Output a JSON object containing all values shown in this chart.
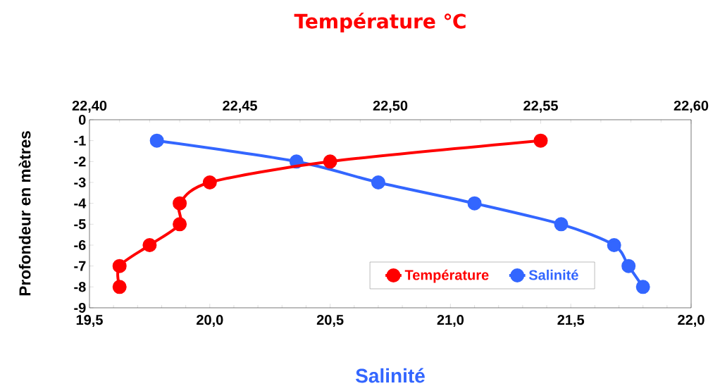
{
  "chart_data": {
    "type": "line",
    "xlabel": "Salinité",
    "x2label": "Température ℃",
    "ylabel": "Profondeur en mètres",
    "series": [
      {
        "name": "Température",
        "color": "#ff0000",
        "axis": "x2",
        "x": [
          22.55,
          22.48,
          22.44,
          22.43,
          22.43,
          22.42,
          22.41,
          22.41
        ],
        "values": [
          -1,
          -2,
          -3,
          -4,
          -5,
          -6,
          -7,
          -8
        ]
      },
      {
        "name": "Salinité",
        "color": "#3366ff",
        "x": [
          19.78,
          20.36,
          20.7,
          21.1,
          21.46,
          21.68,
          21.74,
          21.8
        ],
        "values": [
          -1,
          -2,
          -3,
          -4,
          -5,
          -6,
          -7,
          -8
        ]
      }
    ],
    "xlim": [
      19.5,
      22.0
    ],
    "xticks": [
      {
        "value": 19.5,
        "label": "19,5"
      },
      {
        "value": 20.0,
        "label": "20,0"
      },
      {
        "value": 20.5,
        "label": "20,5"
      },
      {
        "value": 21.0,
        "label": "21,0"
      },
      {
        "value": 21.5,
        "label": "21,5"
      },
      {
        "value": 22.0,
        "label": "22,0"
      }
    ],
    "x2lim": [
      22.4,
      22.6
    ],
    "x2ticks": [
      {
        "value": 22.4,
        "label": "22,40"
      },
      {
        "value": 22.45,
        "label": "22,45"
      },
      {
        "value": 22.5,
        "label": "22,50"
      },
      {
        "value": 22.55,
        "label": "22,55"
      },
      {
        "value": 22.6,
        "label": "22,60"
      }
    ],
    "ylim": [
      -9,
      0
    ],
    "yticks": [
      -9,
      -8,
      -7,
      -6,
      -5,
      -4,
      -3,
      -2,
      -1,
      0
    ],
    "grid": false,
    "legend": "bottom right",
    "marker": "circle",
    "line_style": "solid"
  }
}
